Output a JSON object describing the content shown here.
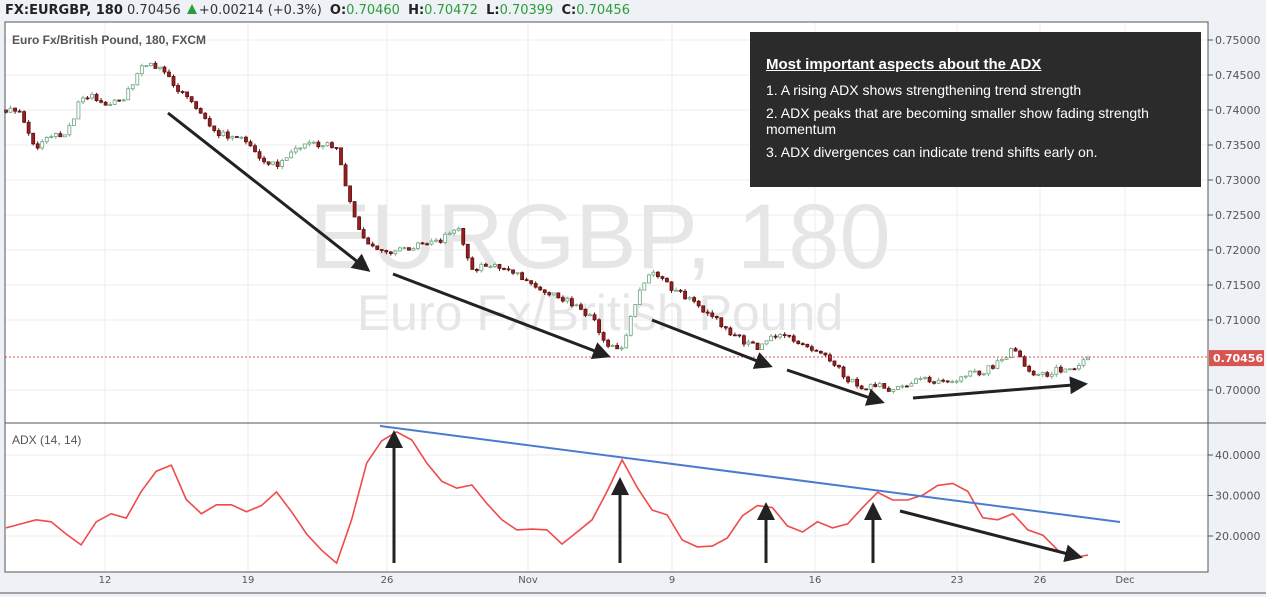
{
  "header": {
    "symbol": "FX:EURGBP, 180",
    "last": "0.70456",
    "change": "+0.00214 (+0.3%)",
    "open_label": "O:",
    "open": "0.70460",
    "high_label": "H:",
    "high": "0.70472",
    "low_label": "L:",
    "low": "0.70399",
    "close_label": "C:",
    "close": "0.70456",
    "change_icon": "triangle-up-icon"
  },
  "legend": {
    "title": "Euro Fx/British Pound, 180, FXCM"
  },
  "watermark": {
    "line1": "EURGBP, 180",
    "line2": "Euro Fx/British Pound"
  },
  "info_box": {
    "title": "Most important aspects about the ADX",
    "points": [
      "1. A rising ADX shows strengthening trend strength",
      "2. ADX peaks that are becoming smaller show fading strength momentum",
      "3. ADX divergences can indicate trend shifts early on."
    ]
  },
  "colors": {
    "up": "#3f8f5f",
    "down": "#9b1f1f",
    "adx": "#f04a4a",
    "trendline": "#4a7bd0",
    "price_tag": "#d9534f"
  },
  "chart_data": [
    {
      "type": "candlestick",
      "title": "Euro Fx/British Pound, 180, FXCM",
      "ylim": [
        0.6975,
        0.7515
      ],
      "y_ticks": [
        "0.75000",
        "0.74500",
        "0.74000",
        "0.73500",
        "0.73000",
        "0.72500",
        "0.72000",
        "0.71500",
        "0.71000",
        "0.70000"
      ],
      "last_price_label": "0.70456",
      "last_price": 0.70456,
      "closes": [
        0.74,
        0.7396,
        0.7346,
        0.7362,
        0.7362,
        0.7419,
        0.7418,
        0.7407,
        0.742,
        0.7464,
        0.7463,
        0.744,
        0.7416,
        0.7393,
        0.7368,
        0.736,
        0.7357,
        0.7329,
        0.7322,
        0.7343,
        0.7352,
        0.7351,
        0.7346,
        0.7257,
        0.7207,
        0.7196,
        0.7201,
        0.7204,
        0.7209,
        0.7214,
        0.7236,
        0.7174,
        0.7176,
        0.7178,
        0.7165,
        0.7148,
        0.7141,
        0.7131,
        0.7119,
        0.7104,
        0.7064,
        0.706,
        0.7132,
        0.7171,
        0.715,
        0.7136,
        0.7119,
        0.7105,
        0.7084,
        0.7071,
        0.7059,
        0.7074,
        0.7083,
        0.7062,
        0.7055,
        0.704,
        0.7016,
        0.7004,
        0.7007,
        0.6998,
        0.701,
        0.7016,
        0.7013,
        0.7014,
        0.7024,
        0.7026,
        0.7039,
        0.7059,
        0.7029,
        0.7021,
        0.7029,
        0.7026,
        0.70456
      ],
      "grid": true
    },
    {
      "type": "line",
      "title": "ADX (14, 14)",
      "ylim": [
        11,
        48
      ],
      "y_ticks": [
        "40.0000",
        "30.0000",
        "20.0000"
      ],
      "values": [
        22.0,
        23.0,
        24.0,
        23.5,
        20.5,
        17.8,
        23.5,
        25.5,
        24.4,
        31,
        36,
        37.5,
        29,
        25.5,
        27.7,
        27.7,
        26,
        27.5,
        30.9,
        26,
        20.5,
        16.5,
        13.3,
        24,
        38,
        43.5,
        45.7,
        43.7,
        38,
        33.5,
        31.8,
        32.6,
        28,
        24,
        21.5,
        21.7,
        21.5,
        18,
        21,
        24,
        31,
        38.8,
        32,
        26.4,
        25.2,
        19,
        17.3,
        17.5,
        19.5,
        25,
        27.5,
        27,
        22.5,
        21,
        23.5,
        22,
        23,
        27,
        30.8,
        28.9,
        28.9,
        30.1,
        32.5,
        33,
        31,
        24.5,
        24,
        25.5,
        21.5,
        20.2,
        16.5,
        14.6,
        15.3
      ],
      "grid": true
    }
  ],
  "x_axis": {
    "ticks": [
      "12",
      "19",
      "26",
      "Nov",
      "9",
      "16",
      "23",
      "26",
      "Dec"
    ]
  }
}
